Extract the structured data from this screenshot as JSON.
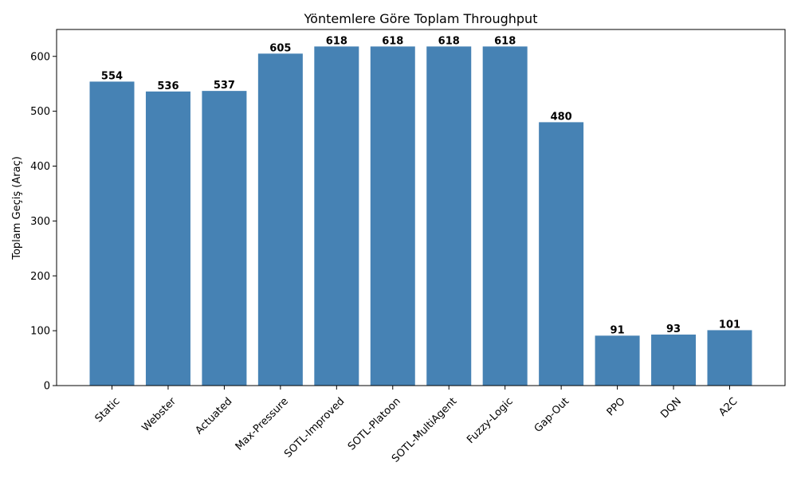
{
  "chart_data": {
    "type": "bar",
    "title": "Yöntemlere Göre Toplam Throughput",
    "xlabel": "",
    "ylabel": "Toplam Geçiş (Araç)",
    "categories": [
      "Static",
      "Webster",
      "Actuated",
      "Max-Pressure",
      "SOTL-Improved",
      "SOTL-Platoon",
      "SOTL-MultiAgent",
      "Fuzzy-Logic",
      "Gap-Out",
      "PPO",
      "DQN",
      "A2C"
    ],
    "values": [
      554,
      536,
      537,
      605,
      618,
      618,
      618,
      618,
      480,
      91,
      93,
      101
    ],
    "ylim": [
      0,
      649
    ],
    "yticks": [
      0,
      100,
      200,
      300,
      400,
      500,
      600
    ],
    "bar_color": "#4682b4",
    "grid": false,
    "legend": "none",
    "x_tick_rotation": 45
  }
}
